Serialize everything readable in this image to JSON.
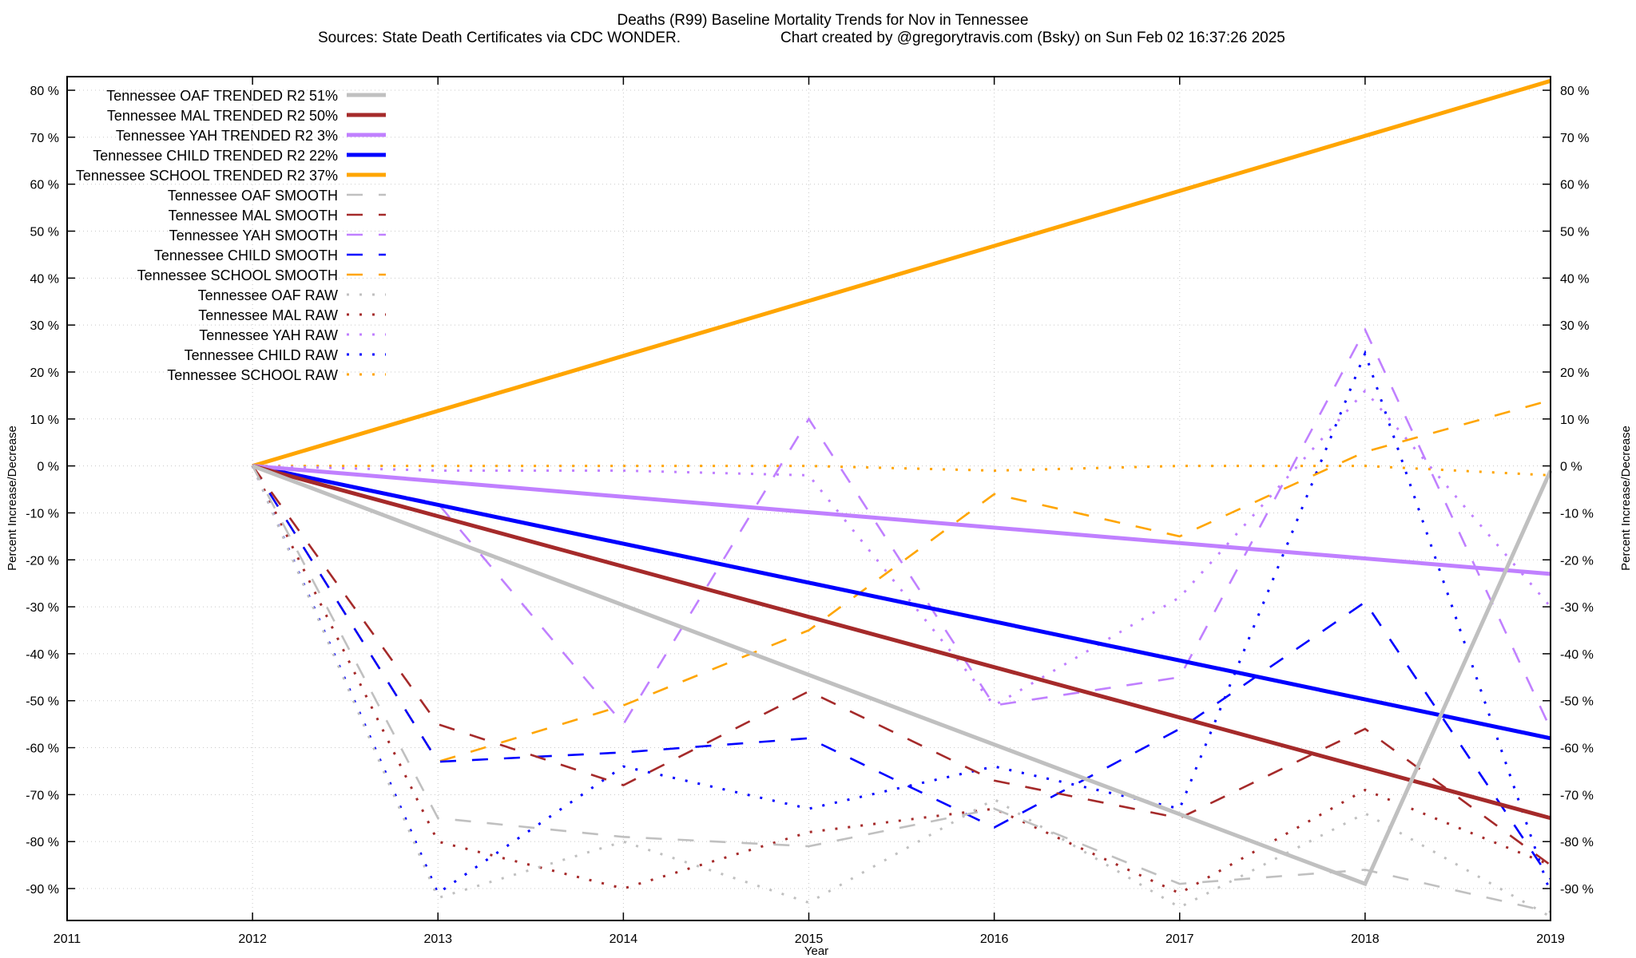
{
  "chart_data": {
    "type": "line",
    "title": "Deaths (R99)  Baseline Mortality Trends for Nov in Tennessee",
    "subtitle_left": "Sources: State Death Certificates via CDC WONDER.",
    "subtitle_right": "Chart created by @gregorytravis.com (Bsky) on Sun Feb 02 16:37:26 2025",
    "xlabel": "Year",
    "ylabel": "Percent Increase/Decrease",
    "y2label": "Percent Increase/Decrease",
    "xlim": [
      2011,
      2019
    ],
    "ylim": [
      -96.8,
      82.9
    ],
    "xticks": [
      2011,
      2012,
      2013,
      2014,
      2015,
      2016,
      2017,
      2018,
      2019
    ],
    "yticks": [
      80,
      70,
      60,
      50,
      40,
      30,
      20,
      10,
      0,
      -10,
      -20,
      -30,
      -40,
      -50,
      -60,
      -70,
      -80,
      -90
    ],
    "ytick_suffix": " %",
    "grid": true,
    "legend_placement": "top-left",
    "series": [
      {
        "name": "Tennessee OAF TRENDED R2  51%",
        "style": "solid",
        "color": "#c0c0c0",
        "x": [
          2012,
          2018,
          2019
        ],
        "y": [
          0,
          -89,
          -1
        ]
      },
      {
        "name": "Tennessee MAL TRENDED R2  50%",
        "style": "solid",
        "color": "#a52a2a",
        "x": [
          2012,
          2019
        ],
        "y": [
          0,
          -75
        ]
      },
      {
        "name": "Tennessee YAH TRENDED R2   3%",
        "style": "solid",
        "color": "#c080ff",
        "x": [
          2012,
          2019
        ],
        "y": [
          0,
          -23
        ]
      },
      {
        "name": "Tennessee CHILD TRENDED R2  22%",
        "style": "solid",
        "color": "#0000ff",
        "x": [
          2012,
          2019
        ],
        "y": [
          0,
          -58
        ]
      },
      {
        "name": "Tennessee SCHOOL TRENDED R2  37%",
        "style": "solid",
        "color": "#ffa500",
        "x": [
          2012,
          2019
        ],
        "y": [
          0,
          82
        ]
      },
      {
        "name": "Tennessee OAF SMOOTH",
        "style": "dashed",
        "color": "#c0c0c0",
        "x": [
          2012,
          2013,
          2014,
          2015,
          2016,
          2017,
          2018,
          2019
        ],
        "y": [
          0,
          -75,
          -79,
          -81,
          -73,
          -89,
          -86,
          -95
        ]
      },
      {
        "name": "Tennessee MAL SMOOTH",
        "style": "dashed",
        "color": "#a52a2a",
        "x": [
          2012,
          2013,
          2014,
          2015,
          2016,
          2017,
          2018,
          2019
        ],
        "y": [
          0,
          -55,
          -68,
          -48,
          -67,
          -75,
          -56,
          -85
        ]
      },
      {
        "name": "Tennessee YAH SMOOTH",
        "style": "dashed",
        "color": "#c080ff",
        "x": [
          2012,
          2013,
          2014,
          2015,
          2016,
          2017,
          2018,
          2019
        ],
        "y": [
          0,
          -8,
          -55,
          10,
          -51,
          -45,
          29,
          -56
        ]
      },
      {
        "name": "Tennessee CHILD SMOOTH",
        "style": "dashed",
        "color": "#0000ff",
        "x": [
          2012,
          2013,
          2014,
          2015,
          2016,
          2017,
          2018,
          2019
        ],
        "y": [
          0,
          -63,
          -61,
          -58,
          -77,
          -56,
          -29,
          -88
        ]
      },
      {
        "name": "Tennessee SCHOOL SMOOTH",
        "style": "dashed",
        "color": "#ffa500",
        "x": [
          2012,
          2013,
          2014,
          2015,
          2016,
          2017,
          2018,
          2019
        ],
        "y": [
          0,
          -63,
          -51,
          -35,
          -6,
          -15,
          3,
          14
        ]
      },
      {
        "name": "Tennessee OAF RAW",
        "style": "dotted",
        "color": "#c0c0c0",
        "x": [
          2012,
          2013,
          2014,
          2015,
          2016,
          2017,
          2018,
          2019
        ],
        "y": [
          0,
          -92,
          -80,
          -93,
          -71,
          -94,
          -74,
          -96
        ]
      },
      {
        "name": "Tennessee MAL RAW",
        "style": "dotted",
        "color": "#a52a2a",
        "x": [
          2012,
          2013,
          2014,
          2015,
          2016,
          2017,
          2018,
          2019
        ],
        "y": [
          0,
          -80,
          -90,
          -78,
          -73,
          -91,
          -69,
          -85
        ]
      },
      {
        "name": "Tennessee YAH RAW",
        "style": "dotted",
        "color": "#c080ff",
        "x": [
          2012,
          2013,
          2014,
          2015,
          2016,
          2017,
          2018,
          2019
        ],
        "y": [
          0,
          -1,
          -1,
          -2,
          -51,
          -28,
          16,
          -30
        ]
      },
      {
        "name": "Tennessee CHILD RAW",
        "style": "dotted",
        "color": "#0000ff",
        "x": [
          2012,
          2013,
          2014,
          2015,
          2016,
          2017,
          2018,
          2019
        ],
        "y": [
          0,
          -91,
          -64,
          -73,
          -64,
          -73,
          24,
          -91
        ]
      },
      {
        "name": "Tennessee SCHOOL RAW",
        "style": "dotted",
        "color": "#ffa500",
        "x": [
          2012,
          2013,
          2014,
          2015,
          2016,
          2017,
          2018,
          2019
        ],
        "y": [
          0,
          0,
          0,
          0,
          -1,
          0,
          0,
          -2
        ]
      }
    ]
  }
}
